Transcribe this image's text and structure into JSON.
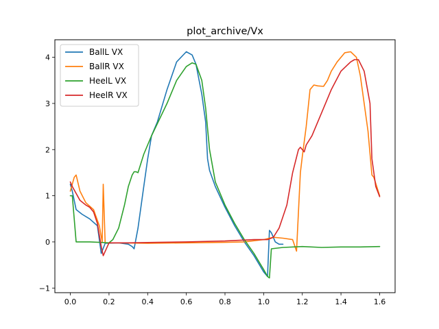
{
  "chart_data": {
    "type": "line",
    "title": "plot_archive/Vx",
    "xlabel": "",
    "ylabel": "",
    "xlim": [
      -0.08,
      1.68
    ],
    "ylim": [
      -1.1,
      4.38
    ],
    "xticks": [
      0.0,
      0.2,
      0.4,
      0.6,
      0.8,
      1.0,
      1.2,
      1.4,
      1.6
    ],
    "xtick_labels": [
      "0.0",
      "0.2",
      "0.4",
      "0.6",
      "0.8",
      "1.0",
      "1.2",
      "1.4",
      "1.6"
    ],
    "yticks": [
      -1,
      0,
      1,
      2,
      3,
      4
    ],
    "ytick_labels": [
      "−1",
      "0",
      "1",
      "2",
      "3",
      "4"
    ],
    "grid": false,
    "legend_position": "top-left",
    "series": [
      {
        "name": "BallL VX",
        "color": "#1f77b4",
        "x": [
          0.0,
          0.01,
          0.03,
          0.06,
          0.1,
          0.14,
          0.16,
          0.18,
          0.25,
          0.3,
          0.32,
          0.33,
          0.35,
          0.38,
          0.4,
          0.42,
          0.45,
          0.5,
          0.55,
          0.6,
          0.63,
          0.65,
          0.68,
          0.7,
          0.71,
          0.72,
          0.75,
          0.8,
          0.85,
          0.9,
          0.95,
          1.0,
          1.02,
          1.03,
          1.04,
          1.06,
          1.08,
          1.1
        ],
        "y": [
          1.25,
          1.1,
          0.7,
          0.6,
          0.5,
          0.35,
          -0.25,
          -0.03,
          -0.02,
          -0.05,
          -0.1,
          -0.15,
          0.3,
          1.2,
          1.8,
          2.3,
          2.6,
          3.3,
          3.9,
          4.12,
          4.05,
          3.85,
          3.2,
          2.6,
          1.8,
          1.55,
          1.2,
          0.75,
          0.35,
          0.0,
          -0.3,
          -0.65,
          -0.75,
          0.25,
          0.2,
          0.0,
          -0.05,
          -0.05
        ]
      },
      {
        "name": "BallR VX",
        "color": "#ff7f0e",
        "x": [
          0.0,
          0.02,
          0.03,
          0.05,
          0.08,
          0.12,
          0.15,
          0.165,
          0.17,
          0.18,
          0.25,
          0.4,
          0.6,
          0.8,
          0.9,
          1.0,
          1.05,
          1.1,
          1.15,
          1.17,
          1.19,
          1.2,
          1.22,
          1.24,
          1.26,
          1.28,
          1.31,
          1.33,
          1.35,
          1.38,
          1.42,
          1.45,
          1.48,
          1.5,
          1.52,
          1.54,
          1.56,
          1.57,
          1.6
        ],
        "y": [
          1.1,
          1.4,
          1.45,
          1.1,
          0.85,
          0.7,
          0.35,
          0.0,
          1.25,
          -0.02,
          -0.02,
          -0.03,
          -0.02,
          -0.01,
          0.0,
          0.05,
          0.1,
          0.08,
          0.05,
          -0.2,
          1.5,
          1.85,
          2.5,
          3.3,
          3.4,
          3.38,
          3.37,
          3.5,
          3.7,
          3.9,
          4.1,
          4.12,
          4.0,
          3.6,
          3.0,
          2.4,
          1.45,
          1.4,
          1.0
        ]
      },
      {
        "name": "HeelL VX",
        "color": "#2ca02c",
        "x": [
          0.0,
          0.01,
          0.03,
          0.1,
          0.15,
          0.2,
          0.22,
          0.25,
          0.28,
          0.3,
          0.32,
          0.33,
          0.34,
          0.35,
          0.38,
          0.42,
          0.5,
          0.55,
          0.6,
          0.63,
          0.65,
          0.68,
          0.7,
          0.72,
          0.75,
          0.8,
          0.85,
          0.9,
          0.95,
          1.0,
          1.02,
          1.03,
          1.04,
          1.1,
          1.2,
          1.3,
          1.4,
          1.5,
          1.6
        ],
        "y": [
          1.0,
          1.0,
          0.0,
          0.0,
          -0.01,
          -0.02,
          0.05,
          0.3,
          0.8,
          1.2,
          1.45,
          1.52,
          1.52,
          1.5,
          1.9,
          2.3,
          3.0,
          3.5,
          3.8,
          3.88,
          3.85,
          3.5,
          2.9,
          2.0,
          1.3,
          0.8,
          0.4,
          0.05,
          -0.25,
          -0.6,
          -0.75,
          -0.78,
          -0.15,
          -0.12,
          -0.1,
          -0.12,
          -0.11,
          -0.11,
          -0.1
        ]
      },
      {
        "name": "HeelR VX",
        "color": "#d62728",
        "x": [
          0.0,
          0.01,
          0.03,
          0.05,
          0.08,
          0.1,
          0.12,
          0.14,
          0.16,
          0.17,
          0.2,
          0.3,
          0.45,
          0.6,
          0.8,
          0.95,
          1.02,
          1.05,
          1.08,
          1.12,
          1.15,
          1.18,
          1.19,
          1.21,
          1.22,
          1.25,
          1.3,
          1.35,
          1.4,
          1.45,
          1.47,
          1.49,
          1.52,
          1.55,
          1.56,
          1.58,
          1.6
        ],
        "y": [
          1.3,
          1.2,
          1.05,
          0.9,
          0.8,
          0.75,
          0.65,
          0.4,
          -0.1,
          -0.3,
          -0.02,
          -0.02,
          -0.01,
          0.0,
          0.02,
          0.05,
          0.05,
          0.1,
          0.3,
          0.8,
          1.5,
          2.0,
          2.05,
          1.95,
          2.1,
          2.3,
          2.8,
          3.3,
          3.7,
          3.9,
          3.95,
          3.95,
          3.7,
          3.0,
          1.8,
          1.2,
          0.98
        ]
      }
    ]
  }
}
